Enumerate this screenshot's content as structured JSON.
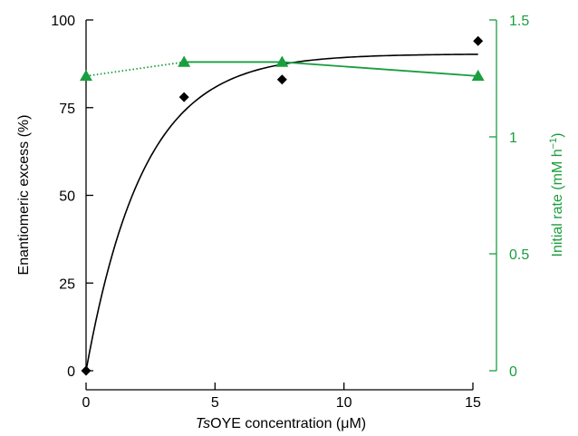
{
  "chart_data": {
    "type": "scatter",
    "title": "",
    "xlabel_italic": "Ts",
    "xlabel_rest": "OYE concentration (μM)",
    "ylabel_left": "Enantiomeric excess (%)",
    "ylabel_right_main": "Initial rate (mM h",
    "ylabel_right_sup": "−1",
    "ylabel_right_close": ")",
    "xlim": [
      0,
      16
    ],
    "ylim_left": [
      0,
      100
    ],
    "ylim_right": [
      0,
      1.5
    ],
    "x_ticks": [
      0,
      5,
      10,
      15
    ],
    "x_tick_labels": [
      "0",
      "5",
      "10",
      "15"
    ],
    "y_left_ticks": [
      0,
      25,
      50,
      75,
      100
    ],
    "y_left_tick_labels": [
      "0",
      "25",
      "50",
      "75",
      "100"
    ],
    "y_right_ticks": [
      0,
      0.5,
      1.0,
      1.5
    ],
    "y_right_tick_labels": [
      "0",
      "0.5",
      "1",
      "1.5"
    ],
    "colors": {
      "left_axis": "#000000",
      "right_axis": "#1a9e3f",
      "ee_series": "#000000",
      "rate_series": "#1a9e3f"
    },
    "series": [
      {
        "axis": "left",
        "marker": "diamond",
        "x": [
          0,
          3.8,
          7.6,
          15.2
        ],
        "y": [
          0,
          78,
          83,
          94
        ]
      },
      {
        "axis": "left",
        "line": "fit",
        "fit": {
          "form": "ymax*(1-exp(-k*x))",
          "ymax": 90.3,
          "k": 0.45,
          "x_range": [
            0,
            15.2
          ]
        }
      },
      {
        "axis": "right",
        "marker": "triangle",
        "x": [
          0,
          3.8,
          7.6,
          15.2
        ],
        "y": [
          1.26,
          1.32,
          1.32,
          1.26
        ],
        "dotted_segments": [
          [
            0,
            1
          ]
        ]
      }
    ]
  }
}
